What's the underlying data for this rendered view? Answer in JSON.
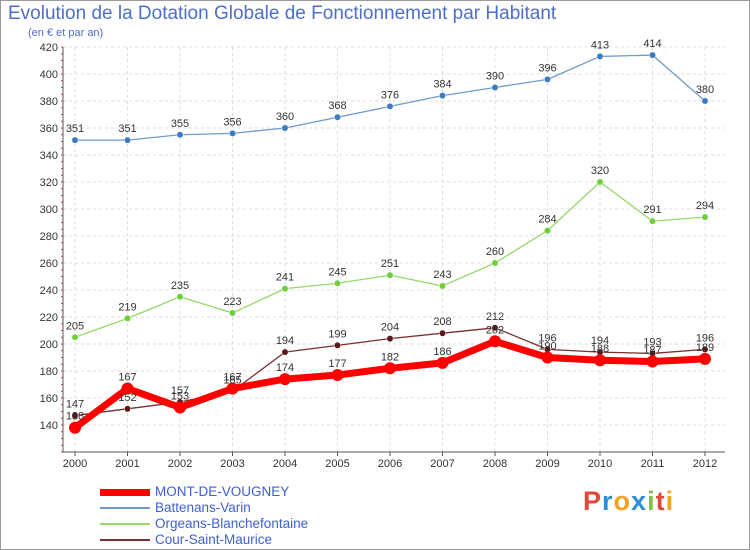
{
  "chart_data": {
    "type": "line",
    "title": "Evolution de la Dotation Globale de Fonctionnement par Habitant",
    "subtitle": "(en € et par an)",
    "xlabel": "",
    "ylabel": "",
    "ylim": [
      120,
      420
    ],
    "y_ticks": [
      140,
      160,
      180,
      200,
      220,
      240,
      260,
      280,
      300,
      320,
      340,
      360,
      380,
      400,
      420
    ],
    "x": [
      "2000",
      "2001",
      "2002",
      "2003",
      "2004",
      "2005",
      "2006",
      "2007",
      "2008",
      "2009",
      "2010",
      "2011",
      "2012"
    ],
    "grid": true,
    "series": [
      {
        "name": "Battenans-Varin",
        "color": "#6e9bcc",
        "marker_color": "#3e7cc0",
        "values": [
          351,
          351,
          355,
          356,
          360,
          368,
          376,
          384,
          390,
          396,
          413,
          414,
          380
        ]
      },
      {
        "name": "Orgeans-Blanchefontaine",
        "color": "#94d86a",
        "marker_color": "#6fcf3a",
        "values": [
          205,
          219,
          235,
          223,
          241,
          245,
          251,
          243,
          260,
          284,
          320,
          291,
          294
        ]
      },
      {
        "name": "Cour-Saint-Maurice",
        "color": "#7a2e2e",
        "marker_color": "#5a1717",
        "values": [
          147,
          152,
          157,
          165,
          194,
          199,
          204,
          208,
          212,
          196,
          194,
          193,
          196
        ]
      },
      {
        "name": "MONT-DE-VOUGNEY",
        "color": "#ff0000",
        "marker_color": "#ff0000",
        "values": [
          138,
          167,
          153,
          167,
          174,
          177,
          182,
          186,
          202,
          190,
          188,
          187,
          189
        ]
      }
    ],
    "legend_order": [
      "MONT-DE-VOUGNEY",
      "Battenans-Varin",
      "Orgeans-Blanchefontaine",
      "Cour-Saint-Maurice"
    ]
  },
  "brand": {
    "letters": [
      "P",
      "r",
      "o",
      "x",
      "i",
      "t",
      "i"
    ],
    "colors": [
      "#e2483a",
      "#2d8fd8",
      "#f0a324",
      "#2d8fd8",
      "#7cc242",
      "#e2483a",
      "#f0a324"
    ]
  }
}
